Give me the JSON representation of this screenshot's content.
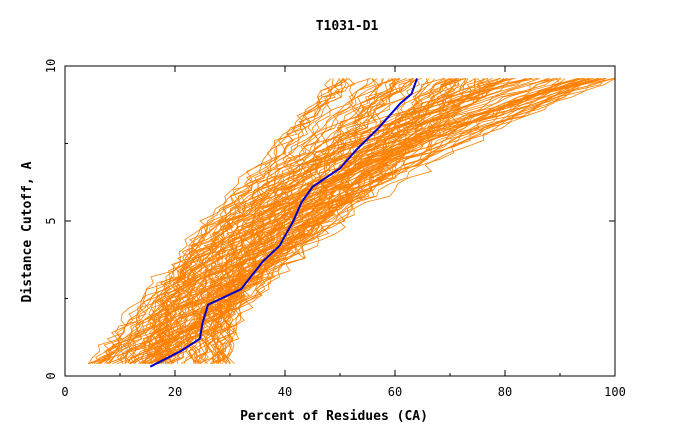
{
  "chart_data": {
    "type": "line",
    "title": "T1031-D1",
    "xlabel": "Percent of Residues (CA)",
    "ylabel": "Distance Cutoff, A",
    "xlim": [
      0,
      100
    ],
    "ylim": [
      0,
      10
    ],
    "xticks": [
      "0",
      "20",
      "40",
      "60",
      "80",
      "100"
    ],
    "yticks": [
      "0",
      "5",
      "10"
    ],
    "grid": false,
    "colors": {
      "models": "#ff8000",
      "highlight": "#0000cc"
    },
    "model_groups": [
      {
        "name_shown": false,
        "count": 70,
        "band_x_at_y0_4": [
          5,
          19
        ],
        "band_x_at_y9_5": [
          50,
          78
        ]
      },
      {
        "name_shown": false,
        "count": 50,
        "band_x_at_y0_4": [
          16,
          30
        ],
        "band_x_at_y9_5": [
          80,
          100
        ]
      }
    ],
    "highlight_series": {
      "x": [
        15.5,
        21,
        24.5,
        25,
        26,
        32,
        36,
        39,
        41.5,
        43,
        45,
        50,
        53,
        57,
        61,
        63,
        64
      ],
      "y": [
        0.3,
        0.8,
        1.2,
        1.7,
        2.3,
        2.8,
        3.7,
        4.2,
        5.0,
        5.6,
        6.1,
        6.7,
        7.3,
        8.0,
        8.8,
        9.1,
        9.6
      ]
    }
  }
}
